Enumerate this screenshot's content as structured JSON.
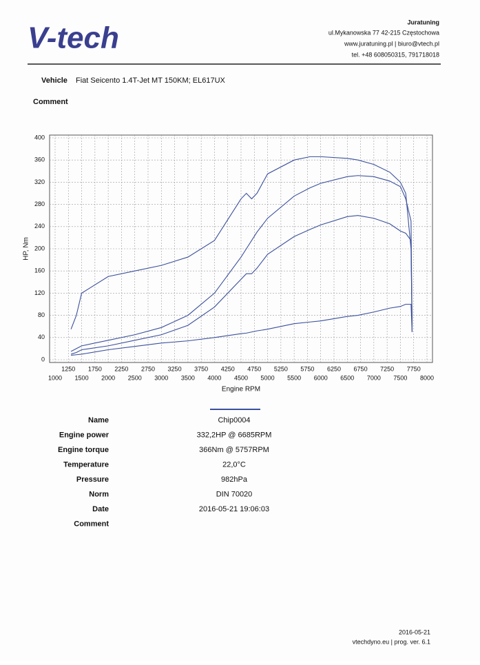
{
  "header": {
    "logo": "V-tech",
    "company": "Juratuning",
    "address": "ul.Mykanowska 77 42-215 Częstochowa",
    "web": "www.juratuning.pl | biuro@vtech.pl",
    "phone": "tel. +48 608050315, 791718018"
  },
  "vehicle": {
    "label": "Vehicle",
    "value": "Fiat Seicento 1.4T-Jet MT 150KM; EL617UX"
  },
  "comment": {
    "label": "Comment"
  },
  "chart_data": {
    "type": "line",
    "xlabel": "Engine RPM",
    "ylabel": "HP, Nm",
    "grid": true,
    "xlim": [
      1000,
      8000
    ],
    "ylim": [
      0,
      400
    ],
    "xticks": [
      1000,
      1250,
      1500,
      1750,
      2000,
      2250,
      2500,
      2750,
      3000,
      3250,
      3500,
      3750,
      4000,
      4250,
      4500,
      4750,
      5000,
      5250,
      5500,
      5750,
      6000,
      6250,
      6500,
      6750,
      7000,
      7250,
      7500,
      7750,
      8000
    ],
    "yticks": [
      0,
      40,
      80,
      120,
      160,
      200,
      240,
      280,
      320,
      360,
      400
    ],
    "x": [
      1300,
      1400,
      1500,
      2000,
      2500,
      3000,
      3500,
      4000,
      4500,
      4600,
      4700,
      4800,
      5000,
      5500,
      5800,
      6000,
      6500,
      6700,
      7000,
      7300,
      7500,
      7600,
      7700,
      7720
    ],
    "series": [
      {
        "color": "#3a4f9c",
        "values": [
          55,
          80,
          120,
          150,
          160,
          170,
          185,
          215,
          290,
          300,
          290,
          300,
          335,
          360,
          366,
          366,
          363,
          360,
          352,
          338,
          320,
          300,
          200,
          60
        ]
      },
      {
        "color": "#3a4f9c",
        "values": [
          15,
          20,
          25,
          35,
          45,
          58,
          80,
          120,
          185,
          200,
          215,
          230,
          255,
          295,
          310,
          318,
          330,
          332,
          330,
          322,
          312,
          290,
          250,
          60
        ]
      },
      {
        "color": "#3a4f9c",
        "values": [
          10,
          13,
          18,
          25,
          35,
          45,
          62,
          95,
          145,
          155,
          155,
          165,
          190,
          222,
          235,
          243,
          258,
          260,
          255,
          245,
          232,
          228,
          215,
          50
        ]
      },
      {
        "color": "#3a4f9c",
        "values": [
          8,
          9,
          10,
          18,
          24,
          30,
          34,
          40,
          47,
          48,
          50,
          52,
          55,
          65,
          68,
          70,
          78,
          80,
          86,
          93,
          96,
          100,
          100,
          50
        ]
      }
    ]
  },
  "info": {
    "rows": [
      {
        "label": "Name",
        "value": "Chip0004"
      },
      {
        "label": "Engine power",
        "value": "332,2HP @  6685RPM"
      },
      {
        "label": "Engine torque",
        "value": "366Nm @ 5757RPM"
      },
      {
        "label": "Temperature",
        "value": "22,0°C"
      },
      {
        "label": "Pressure",
        "value": "982hPa"
      },
      {
        "label": "Norm",
        "value": "DIN 70020"
      },
      {
        "label": "Date",
        "value": "2016-05-21 19:06:03"
      },
      {
        "label": "Comment",
        "value": ""
      }
    ]
  },
  "footer": {
    "date": "2016-05-21",
    "text": "vtechdyno.eu | prog. ver. 6.1"
  }
}
